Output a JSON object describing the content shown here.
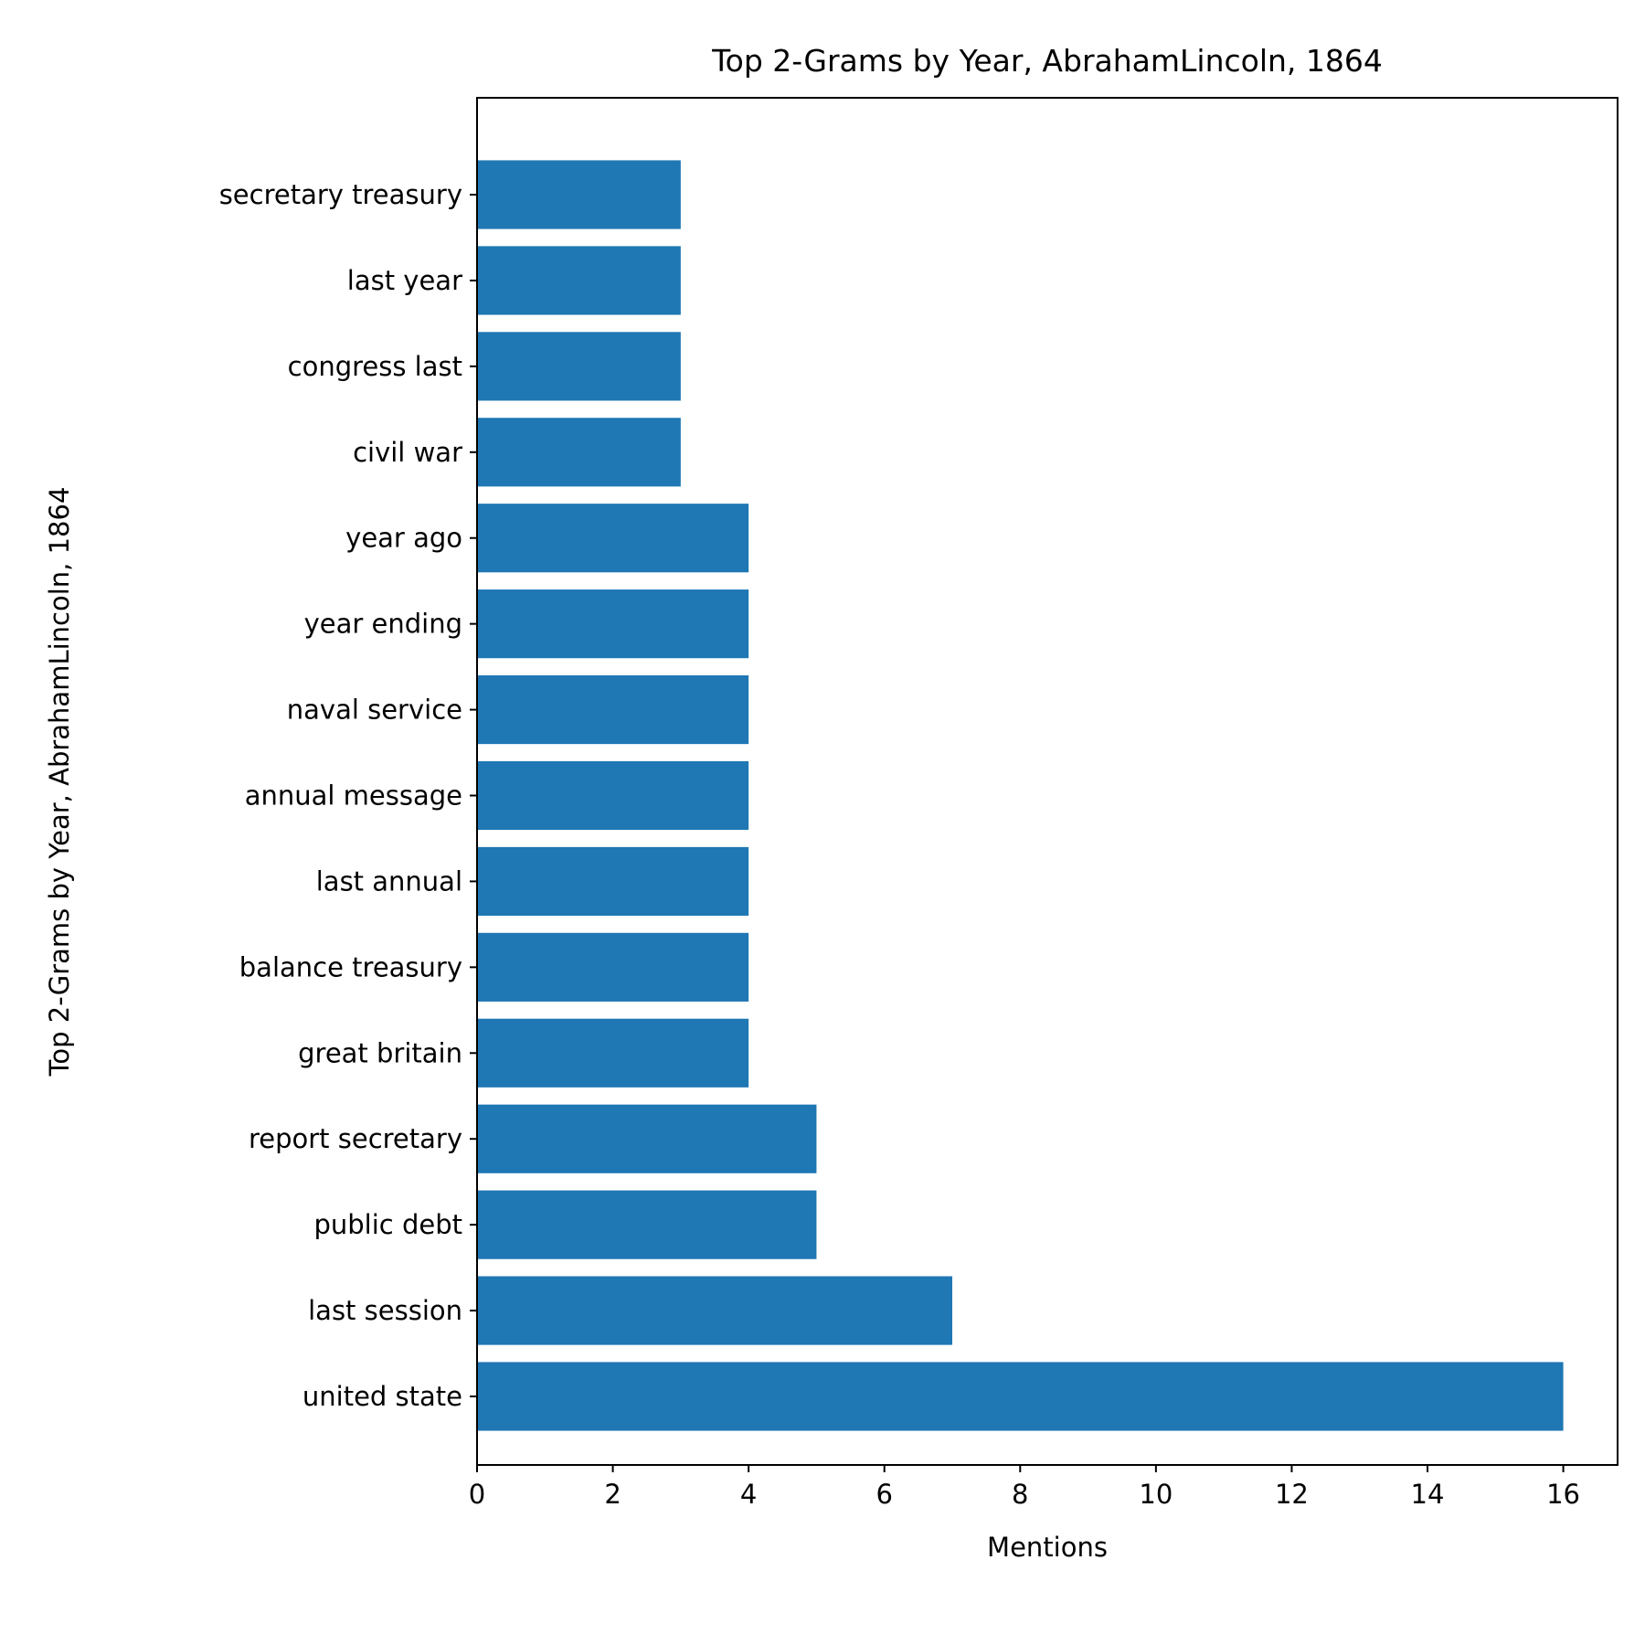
{
  "chart_data": {
    "type": "bar",
    "orientation": "horizontal",
    "title": "Top 2-Grams by Year, AbrahamLincoln, 1864",
    "xlabel": "Mentions",
    "ylabel": "Top 2-Grams by Year, AbrahamLincoln, 1864",
    "categories": [
      "united state",
      "last session",
      "public debt",
      "report secretary",
      "great britain",
      "balance treasury",
      "last annual",
      "annual message",
      "naval service",
      "year ending",
      "year ago",
      "civil war",
      "congress last",
      "last year",
      "secretary treasury"
    ],
    "values": [
      16,
      7,
      5,
      5,
      4,
      4,
      4,
      4,
      4,
      4,
      4,
      3,
      3,
      3,
      3
    ],
    "xlim": [
      0,
      16.8
    ],
    "xticks": [
      0,
      2,
      4,
      6,
      8,
      10,
      12,
      14,
      16
    ],
    "bar_color": "#1f77b4",
    "grid": false,
    "legend": "none"
  }
}
